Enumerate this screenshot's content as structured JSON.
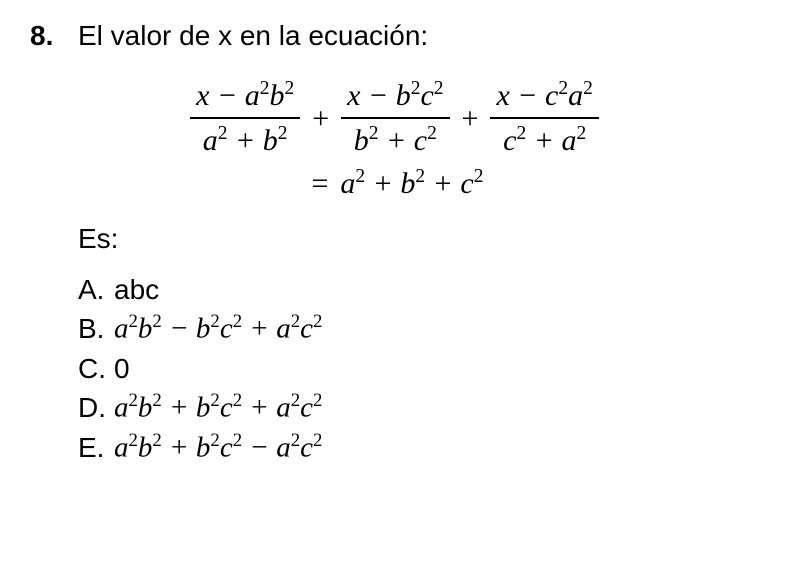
{
  "colors": {
    "text": "#000000",
    "bg": "#ffffff",
    "rule": "#000000"
  },
  "fonts": {
    "body": "Arial",
    "math": "Cambria Math",
    "body_size_pt": 21,
    "math_size_pt": 22
  },
  "question": {
    "number": "8.",
    "prompt": "El valor de x en la ecuación:",
    "es_label": "Es:"
  },
  "equation": {
    "terms": [
      {
        "num": "x − a²b²",
        "den": "a² + b²"
      },
      {
        "num": "x − b²c²",
        "den": "b² + c²"
      },
      {
        "num": "x − c²a²",
        "den": "c² + a²"
      }
    ],
    "plus": "+",
    "rhs_prefix": "= ",
    "rhs": "a² + b² + c²"
  },
  "options": [
    {
      "label": "A.",
      "text": "abc",
      "style": "plain"
    },
    {
      "label": "B.",
      "text": "a²b² − b²c² + a²c²",
      "style": "math"
    },
    {
      "label": "C.",
      "text": "0",
      "style": "plain"
    },
    {
      "label": "D.",
      "text": "a²b² + b²c² + a²c²",
      "style": "math"
    },
    {
      "label": "E.",
      "text": "a²b² + b²c² − a²c²",
      "style": "math"
    }
  ]
}
